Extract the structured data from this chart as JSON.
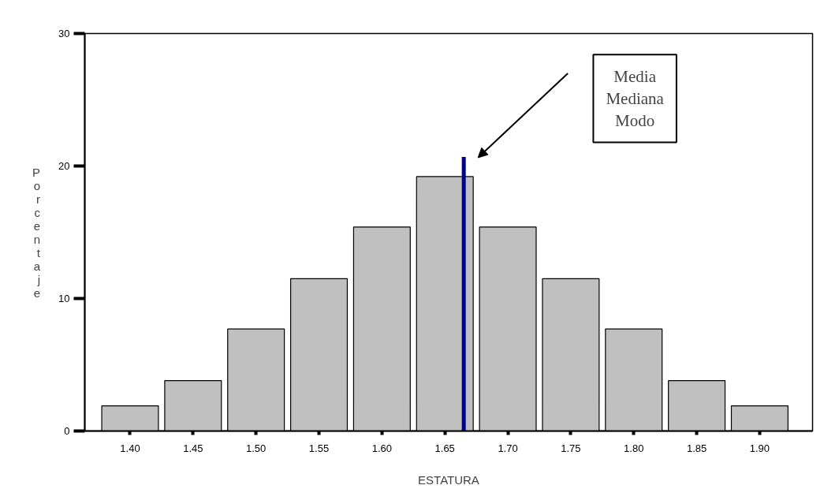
{
  "chart_data": {
    "type": "histogram",
    "xlabel": "ESTATURA",
    "ylabel": "Porcentaje",
    "bins": [
      1.375,
      1.425,
      1.475,
      1.525,
      1.575,
      1.625,
      1.675,
      1.725,
      1.775,
      1.825,
      1.875,
      1.925
    ],
    "values": [
      1.9,
      3.8,
      7.7,
      11.5,
      15.4,
      19.2,
      15.4,
      11.5,
      7.7,
      3.8,
      1.9
    ],
    "color": "#c0c0c0",
    "xlim": [
      1.364,
      1.942
    ],
    "ylim": [
      0,
      30
    ],
    "xticks": [
      {
        "value": 1.4,
        "label": "1.40"
      },
      {
        "value": 1.45,
        "label": "1.45"
      },
      {
        "value": 1.5,
        "label": "1.50"
      },
      {
        "value": 1.55,
        "label": "1.55"
      },
      {
        "value": 1.6,
        "label": "1.60"
      },
      {
        "value": 1.65,
        "label": "1.65"
      },
      {
        "value": 1.7,
        "label": "1.70"
      },
      {
        "value": 1.75,
        "label": "1.75"
      },
      {
        "value": 1.8,
        "label": "1.80"
      },
      {
        "value": 1.85,
        "label": "1.85"
      },
      {
        "value": 1.9,
        "label": "1.90"
      }
    ],
    "yticks": [
      0,
      10,
      20,
      30
    ],
    "ref_lines": [
      {
        "axis": "x",
        "value": 1.665,
        "color": "#000080"
      }
    ],
    "annotations": [
      "Media\nMediana\nModo"
    ],
    "grid": false
  }
}
